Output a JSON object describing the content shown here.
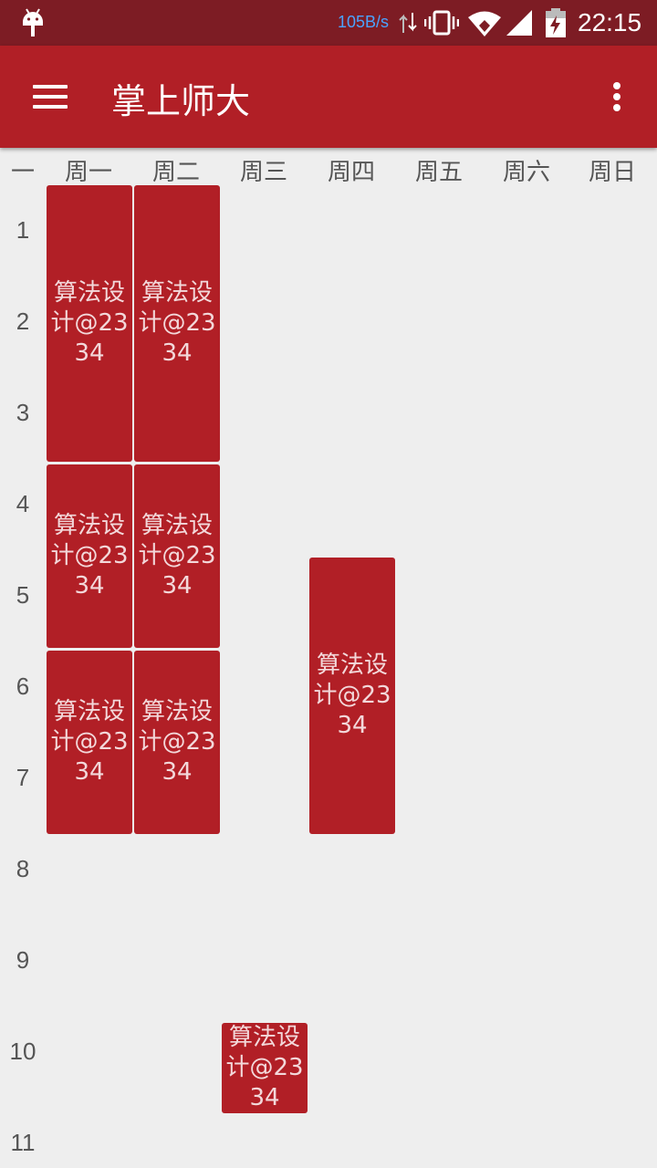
{
  "status_bar": {
    "net_speed": "105B/s",
    "time": "22:15"
  },
  "app_bar": {
    "title": "掌上师大"
  },
  "timetable": {
    "corner_label": "一",
    "days": [
      "周一",
      "周二",
      "周三",
      "周四",
      "周五",
      "周六",
      "周日"
    ],
    "periods": [
      "1",
      "2",
      "3",
      "4",
      "5",
      "6",
      "7",
      "8",
      "9",
      "10",
      "11"
    ],
    "courses": [
      {
        "name": "算法设计",
        "room": "@2334",
        "day": 1,
        "start": 1,
        "span": 3
      },
      {
        "name": "算法设计",
        "room": "@2334",
        "day": 2,
        "start": 1,
        "span": 3
      },
      {
        "name": "算法设计",
        "room": "@2334",
        "day": 1,
        "start": 4,
        "span": 2
      },
      {
        "name": "算法设计",
        "room": "@2334",
        "day": 2,
        "start": 4,
        "span": 2
      },
      {
        "name": "算法设计",
        "room": "@2334",
        "day": 1,
        "start": 6,
        "span": 2
      },
      {
        "name": "算法设计",
        "room": "@2334",
        "day": 2,
        "start": 6,
        "span": 2
      },
      {
        "name": "算法设计",
        "room": "@2334",
        "day": 4,
        "start": 5,
        "span": 3
      },
      {
        "name": "算法设计",
        "room": "@2334",
        "day": 3,
        "start": 10,
        "span": 1
      }
    ]
  }
}
